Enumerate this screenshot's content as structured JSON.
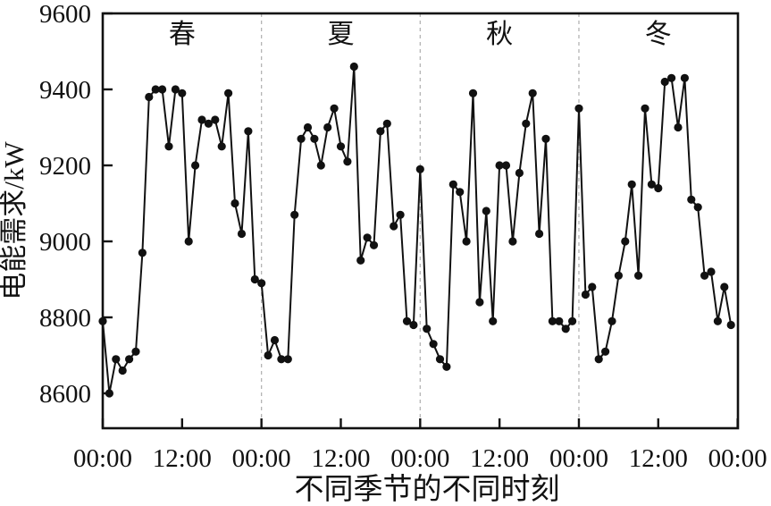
{
  "chart_data": {
    "type": "line",
    "series_name": "电能需求",
    "xlabel": "不同季节的不同时刻",
    "ylabel": "电能需求/kW",
    "season_labels": [
      "春",
      "夏",
      "秋",
      "冬"
    ],
    "x_tick_labels": [
      "00:00",
      "12:00",
      "00:00",
      "12:00",
      "00:00",
      "12:00",
      "00:00",
      "12:00",
      "00:00"
    ],
    "x_tick_hours": [
      0,
      12,
      24,
      36,
      48,
      60,
      72,
      84,
      96
    ],
    "x_axis_span_hours": 96,
    "points_per_season": 24,
    "y_ticks": [
      8600,
      8800,
      9000,
      9200,
      9400,
      9600
    ],
    "y_tick_top_value": 9600,
    "ylim": [
      8508,
      9600
    ],
    "grid": "off",
    "legend": "none",
    "marker": "filled-circle",
    "line_color": "#111111",
    "marker_color": "#111111",
    "separator_color": "#b4b4b4",
    "separator_hours": [
      24,
      48,
      72
    ],
    "seasons": [
      {
        "label": "春",
        "values": [
          8790,
          8600,
          8690,
          8660,
          8690,
          8710,
          8970,
          9380,
          9400,
          9400,
          9250,
          9400,
          9390,
          9000,
          9200,
          9320,
          9310,
          9320,
          9250,
          9390,
          9100,
          9020,
          9290,
          8900
        ]
      },
      {
        "label": "夏",
        "values": [
          8890,
          8700,
          8740,
          8690,
          8690,
          9070,
          9270,
          9300,
          9270,
          9200,
          9300,
          9350,
          9250,
          9210,
          9460,
          8950,
          9010,
          8990,
          9290,
          9310,
          9040,
          9070,
          8790,
          8780
        ]
      },
      {
        "label": "秋",
        "values": [
          9190,
          8770,
          8730,
          8690,
          8670,
          9150,
          9130,
          9000,
          9390,
          8840,
          9080,
          8790,
          9200,
          9200,
          9000,
          9180,
          9310,
          9390,
          9020,
          9270,
          8790,
          8790,
          8770,
          8790
        ]
      },
      {
        "label": "冬",
        "values": [
          9350,
          8860,
          8880,
          8690,
          8710,
          8790,
          8910,
          9000,
          9150,
          8910,
          9350,
          9150,
          9140,
          9420,
          9430,
          9300,
          9430,
          9110,
          9090,
          8910,
          8920,
          8790,
          8880,
          8780
        ]
      }
    ]
  }
}
